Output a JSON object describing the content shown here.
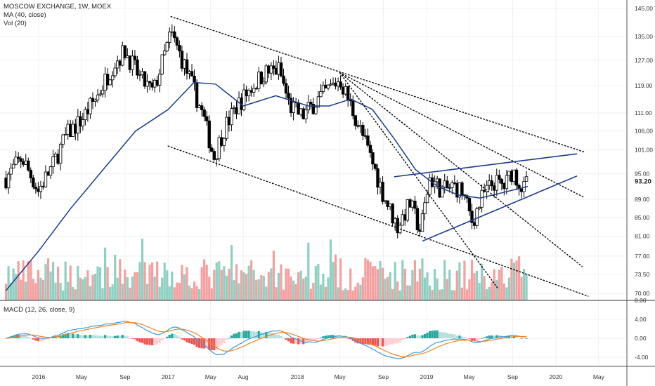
{
  "legend": {
    "title": "MOSCOW EXCHANGE, 1W, MOEX",
    "ma": "MA (40, close)",
    "vol": "Vol (20)",
    "macd": "MACD (12, 26, close, 9)"
  },
  "chart_data": {
    "type": "candlestick",
    "title": "MOSCOW EXCHANGE, 1W, MOEX",
    "last_price": "93.20",
    "price_axis": {
      "ticks": [
        "145.00",
        "135.00",
        "127.00",
        "119.00",
        "111.00",
        "106.00",
        "101.00",
        "95.00",
        "89.00",
        "85.00",
        "81.00",
        "77.00",
        "73.50",
        "70.00"
      ],
      "scale": "log",
      "range": [
        69,
        147
      ]
    },
    "macd_axis": {
      "ticks": [
        "8.00",
        "4.00",
        "0.00",
        "-4.00"
      ],
      "range": [
        -7,
        8
      ]
    },
    "x_axis": {
      "labels": [
        "2016",
        "May",
        "Sep",
        "2017",
        "May",
        "Aug",
        "2018",
        "May",
        "Sep",
        "2019",
        "May",
        "Sep",
        "2020",
        "May"
      ]
    },
    "price_path": [
      [
        "2015-10-01",
        94
      ],
      [
        "2015-11-15",
        99
      ],
      [
        "2015-12-31",
        91
      ],
      [
        "2016-02-10",
        97
      ],
      [
        "2016-03-20",
        105
      ],
      [
        "2016-05-01",
        109
      ],
      [
        "2016-06-15",
        116
      ],
      [
        "2016-08-01",
        126
      ],
      [
        "2016-09-01",
        130
      ],
      [
        "2016-10-15",
        121
      ],
      [
        "2016-11-20",
        117
      ],
      [
        "2016-12-20",
        128
      ],
      [
        "2017-01-09",
        136
      ],
      [
        "2017-02-10",
        127
      ],
      [
        "2017-03-10",
        119
      ],
      [
        "2017-04-10",
        110
      ],
      [
        "2017-05-10",
        99
      ],
      [
        "2017-06-10",
        107
      ],
      [
        "2017-07-15",
        113
      ],
      [
        "2017-08-20",
        118
      ],
      [
        "2017-10-01",
        123
      ],
      [
        "2017-11-10",
        124
      ],
      [
        "2017-12-10",
        113
      ],
      [
        "2018-01-15",
        110
      ],
      [
        "2018-03-01",
        115
      ],
      [
        "2018-05-01",
        121
      ],
      [
        "2018-06-01",
        113
      ],
      [
        "2018-07-15",
        102
      ],
      [
        "2018-09-01",
        90
      ],
      [
        "2018-10-10",
        83
      ],
      [
        "2018-11-15",
        88
      ],
      [
        "2018-12-15",
        82
      ],
      [
        "2019-01-10",
        94
      ],
      [
        "2019-02-15",
        91
      ],
      [
        "2019-03-20",
        92
      ],
      [
        "2019-04-10",
        91
      ],
      [
        "2019-05-10",
        84
      ],
      [
        "2019-06-10",
        90
      ],
      [
        "2019-07-10",
        93
      ],
      [
        "2019-08-10",
        92
      ],
      [
        "2019-09-01",
        96
      ],
      [
        "2019-10-01",
        91
      ],
      [
        "2019-10-14",
        93.2
      ]
    ],
    "ma40_path": [
      [
        "2015-10-01",
        70.5
      ],
      [
        "2016-01-01",
        78
      ],
      [
        "2016-04-01",
        87
      ],
      [
        "2016-07-01",
        96
      ],
      [
        "2016-10-01",
        106
      ],
      [
        "2017-01-01",
        112
      ],
      [
        "2017-03-15",
        120
      ],
      [
        "2017-05-15",
        119.5
      ],
      [
        "2017-08-01",
        113
      ],
      [
        "2017-11-01",
        116
      ],
      [
        "2018-02-01",
        113
      ],
      [
        "2018-04-01",
        113
      ],
      [
        "2018-06-01",
        115
      ],
      [
        "2018-08-01",
        112
      ],
      [
        "2018-10-01",
        104
      ],
      [
        "2018-12-01",
        96
      ],
      [
        "2019-02-01",
        92
      ],
      [
        "2019-04-01",
        90
      ],
      [
        "2019-06-01",
        89.3
      ],
      [
        "2019-08-01",
        90.5
      ],
      [
        "2019-10-14",
        92
      ]
    ],
    "trendlines": [
      {
        "style": "dotted",
        "from": [
          "2017-01-09",
          142
        ],
        "to": [
          "2020-03-20",
          100.5
        ]
      },
      {
        "style": "dotted",
        "from": [
          "2017-01-01",
          102
        ],
        "to": [
          "2020-04-01",
          69.5
        ]
      },
      {
        "style": "dotted",
        "from": [
          "2018-05-01",
          123
        ],
        "to": [
          "2020-03-20",
          89.5
        ]
      },
      {
        "style": "dotted",
        "from": [
          "2018-05-01",
          123
        ],
        "to": [
          "2020-03-15",
          75
        ]
      },
      {
        "style": "dotted",
        "from": [
          "2018-05-01",
          123
        ],
        "to": [
          "2019-07-20",
          71
        ]
      },
      {
        "style": "solid",
        "from": [
          "2018-10-01",
          94.3
        ],
        "to": [
          "2020-03-01",
          100
        ]
      },
      {
        "style": "solid",
        "from": [
          "2018-12-20",
          80
        ],
        "to": [
          "2020-03-01",
          94.5
        ]
      }
    ],
    "series": []
  }
}
